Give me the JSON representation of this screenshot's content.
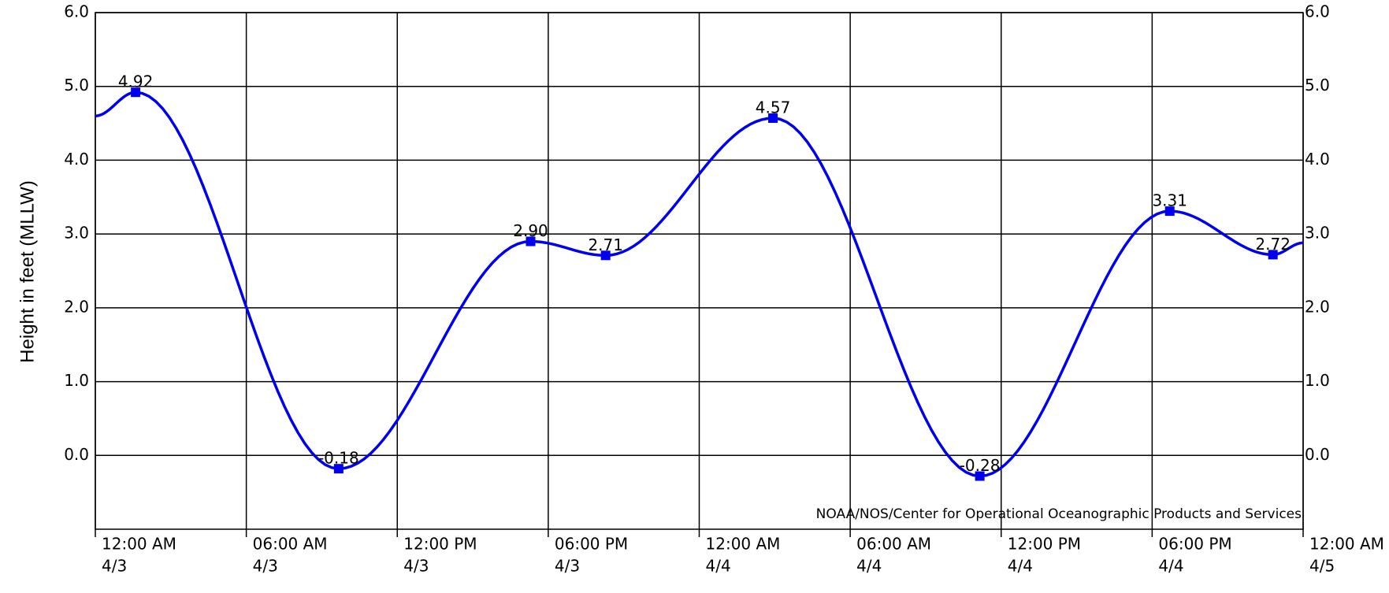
{
  "chart_data": {
    "type": "line",
    "ylabel": "Height in feet (MLLW)",
    "annotation": "NOAA/NOS/Center for Operational Oceanographic Products and Services",
    "x": [
      0,
      1.6,
      9.67,
      17.3,
      20.28,
      26.93,
      35.15,
      42.7,
      46.8,
      48
    ],
    "series": [
      {
        "color": "#0000ee",
        "values": [
          4.6,
          4.92,
          -0.18,
          2.9,
          2.71,
          4.57,
          -0.28,
          3.31,
          2.72,
          2.88
        ],
        "value_labels": [
          null,
          "4.92",
          "-0.18",
          "2.90",
          "2.71",
          "4.57",
          "-0.28",
          "3.31",
          "2.72",
          null
        ]
      }
    ],
    "xlim": [
      0,
      48
    ],
    "xticks": [
      {
        "value": 0,
        "label": "12:00 AM",
        "date": "4/3"
      },
      {
        "value": 6,
        "label": "06:00 AM",
        "date": "4/3"
      },
      {
        "value": 12,
        "label": "12:00 PM",
        "date": "4/3"
      },
      {
        "value": 18,
        "label": "06:00 PM",
        "date": "4/3"
      },
      {
        "value": 24,
        "label": "12:00 AM",
        "date": "4/4"
      },
      {
        "value": 30,
        "label": "06:00 AM",
        "date": "4/4"
      },
      {
        "value": 36,
        "label": "12:00 PM",
        "date": "4/4"
      },
      {
        "value": 42,
        "label": "06:00 PM",
        "date": "4/4"
      },
      {
        "value": 48,
        "label": "12:00 AM",
        "date": "4/5"
      }
    ],
    "ylim": [
      -1,
      6
    ],
    "yticks": [
      {
        "value": 0,
        "label": "0.0"
      },
      {
        "value": 1,
        "label": "1.0"
      },
      {
        "value": 2,
        "label": "2.0"
      },
      {
        "value": 3,
        "label": "3.0"
      },
      {
        "value": 4,
        "label": "4.0"
      },
      {
        "value": 5,
        "label": "5.0"
      },
      {
        "value": 6,
        "label": "6.0"
      }
    ],
    "grid": true
  }
}
